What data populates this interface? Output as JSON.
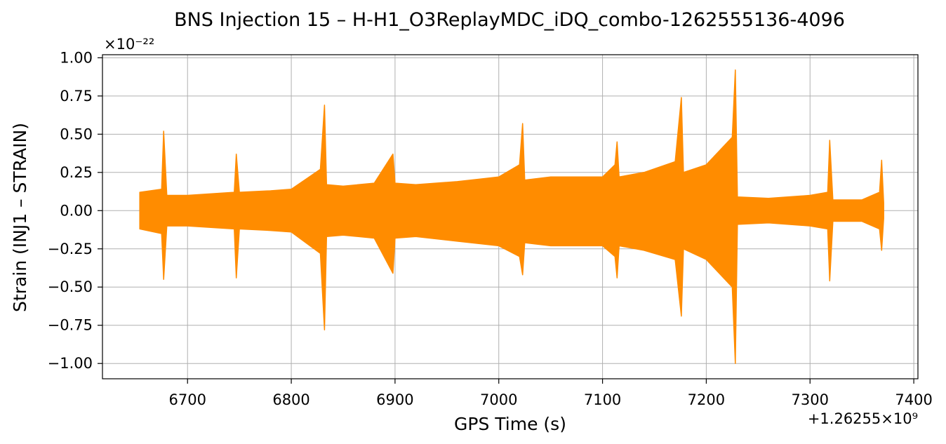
{
  "chart_data": {
    "type": "line",
    "title": "BNS Injection 15 – H-H1_O3ReplayMDC_iDQ_combo-1262555136-4096",
    "xlabel": "GPS Time (s)",
    "ylabel": "Strain (INJ1 – STRAIN)",
    "x_offset_label": "+1.26255×10⁹",
    "y_scale_label": "×10⁻²²",
    "x_ticks": [
      6700,
      6800,
      6900,
      7000,
      7100,
      7200,
      7300,
      7400
    ],
    "y_ticks": [
      "1.00",
      "0.75",
      "0.50",
      "0.25",
      "0.00",
      "−0.25",
      "−0.50",
      "−0.75",
      "−1.00"
    ],
    "y_tick_values": [
      1.0,
      0.75,
      0.5,
      0.25,
      0.0,
      -0.25,
      -0.5,
      -0.75,
      -1.0
    ],
    "xlim": [
      6618,
      7404
    ],
    "ylim": [
      -1.1,
      1.02
    ],
    "grid": true,
    "series": [
      {
        "color": "#ff8c00",
        "envelope": {
          "x": [
            6654,
            6675,
            6677,
            6680,
            6700,
            6745,
            6747,
            6750,
            6780,
            6800,
            6828,
            6832,
            6834,
            6850,
            6880,
            6898,
            6900,
            6920,
            6960,
            7000,
            7020,
            7023,
            7025,
            7050,
            7080,
            7100,
            7112,
            7114,
            7116,
            7140,
            7170,
            7176,
            7178,
            7200,
            7225,
            7228,
            7230,
            7260,
            7300,
            7317,
            7319,
            7322,
            7350,
            7367,
            7369,
            7371
          ],
          "upper": [
            0.12,
            0.14,
            0.52,
            0.1,
            0.1,
            0.12,
            0.37,
            0.12,
            0.13,
            0.14,
            0.27,
            0.69,
            0.17,
            0.16,
            0.18,
            0.37,
            0.18,
            0.17,
            0.19,
            0.22,
            0.3,
            0.57,
            0.2,
            0.22,
            0.22,
            0.22,
            0.3,
            0.45,
            0.22,
            0.25,
            0.32,
            0.74,
            0.25,
            0.3,
            0.48,
            0.92,
            0.09,
            0.08,
            0.1,
            0.12,
            0.46,
            0.07,
            0.07,
            0.12,
            0.33,
            0.05
          ],
          "lower": [
            -0.12,
            -0.15,
            -0.45,
            -0.1,
            -0.1,
            -0.12,
            -0.44,
            -0.12,
            -0.13,
            -0.14,
            -0.28,
            -0.78,
            -0.17,
            -0.16,
            -0.18,
            -0.41,
            -0.18,
            -0.17,
            -0.2,
            -0.23,
            -0.3,
            -0.42,
            -0.21,
            -0.23,
            -0.23,
            -0.23,
            -0.3,
            -0.44,
            -0.23,
            -0.26,
            -0.32,
            -0.69,
            -0.25,
            -0.32,
            -0.5,
            -1.0,
            -0.09,
            -0.08,
            -0.1,
            -0.12,
            -0.46,
            -0.07,
            -0.07,
            -0.12,
            -0.26,
            -0.05
          ]
        }
      }
    ]
  }
}
